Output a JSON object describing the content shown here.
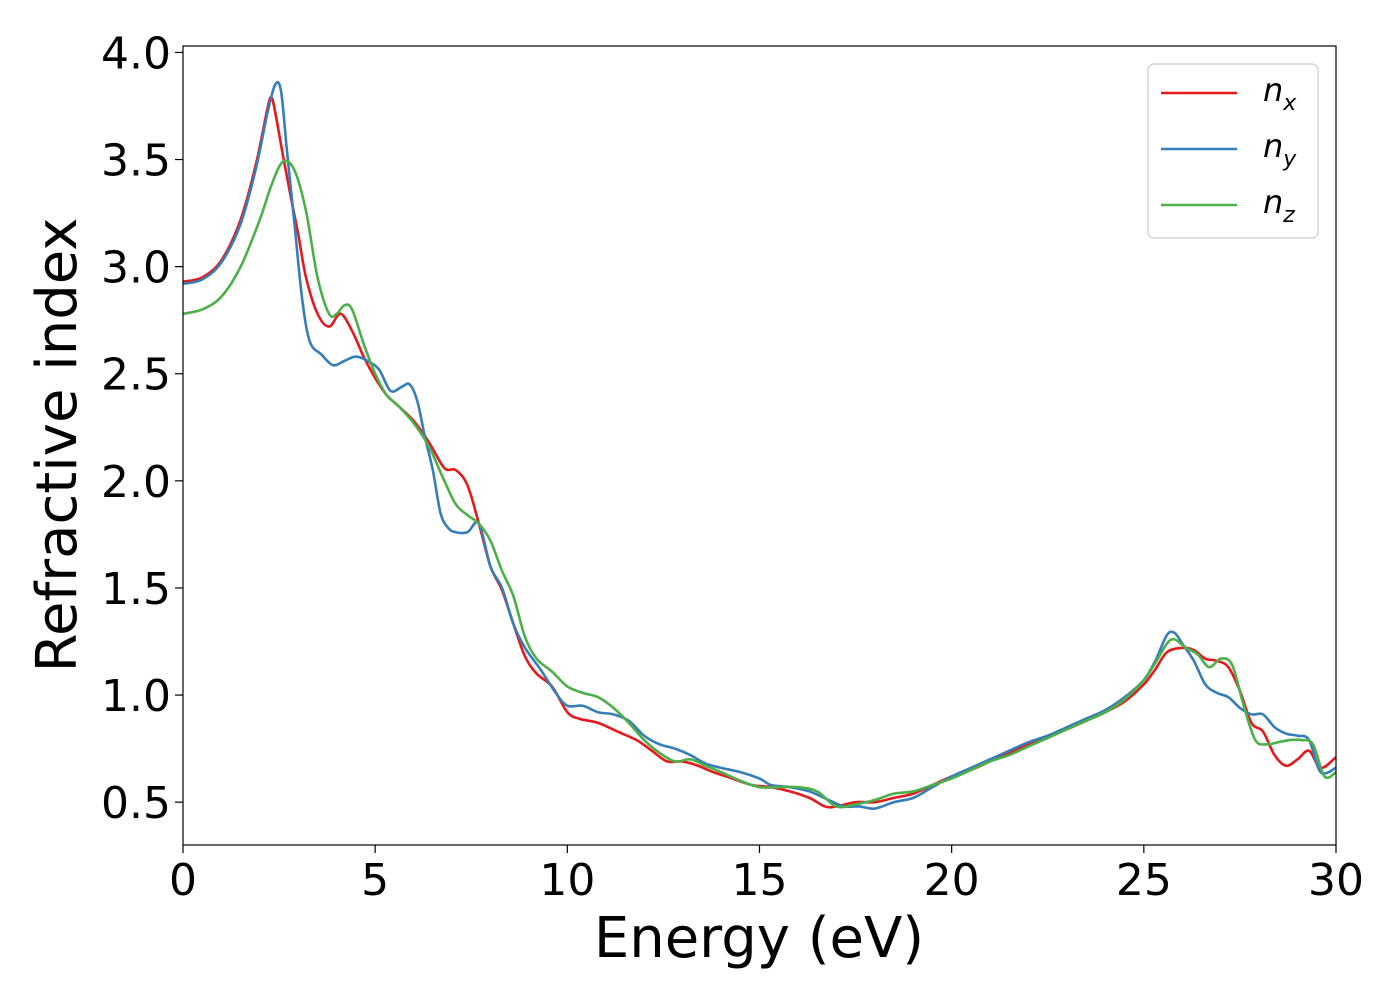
{
  "chart_data": {
    "type": "line",
    "title": "",
    "xlabel": "Energy (eV)",
    "ylabel": "Refractive index",
    "xlim": [
      0,
      30
    ],
    "ylim": [
      0.3,
      4.03
    ],
    "xticks": [
      0,
      5,
      10,
      15,
      20,
      25,
      30
    ],
    "xtick_labels": [
      "0",
      "5",
      "10",
      "15",
      "20",
      "25",
      "30"
    ],
    "yticks": [
      0.5,
      1.0,
      1.5,
      2.0,
      2.5,
      3.0,
      3.5,
      4.0
    ],
    "ytick_labels": [
      "0.5",
      "1.0",
      "1.5",
      "2.0",
      "2.5",
      "3.0",
      "3.5",
      "4.0"
    ],
    "grid": false,
    "legend_position": "top-right",
    "series": [
      {
        "name": "n_x",
        "label_base": "n",
        "label_sub": "x",
        "color": "#e41a1c",
        "points": [
          [
            0,
            2.93
          ],
          [
            0.5,
            2.95
          ],
          [
            1.0,
            3.03
          ],
          [
            1.5,
            3.22
          ],
          [
            1.9,
            3.48
          ],
          [
            2.2,
            3.74
          ],
          [
            2.3,
            3.79
          ],
          [
            2.4,
            3.72
          ],
          [
            2.6,
            3.52
          ],
          [
            2.8,
            3.33
          ],
          [
            3.0,
            3.15
          ],
          [
            3.2,
            2.95
          ],
          [
            3.5,
            2.78
          ],
          [
            3.8,
            2.72
          ],
          [
            4.1,
            2.78
          ],
          [
            4.4,
            2.7
          ],
          [
            4.7,
            2.58
          ],
          [
            5.0,
            2.48
          ],
          [
            5.3,
            2.4
          ],
          [
            5.6,
            2.35
          ],
          [
            6.0,
            2.28
          ],
          [
            6.4,
            2.18
          ],
          [
            6.8,
            2.06
          ],
          [
            7.1,
            2.05
          ],
          [
            7.4,
            1.98
          ],
          [
            7.7,
            1.8
          ],
          [
            8.0,
            1.6
          ],
          [
            8.3,
            1.49
          ],
          [
            8.6,
            1.33
          ],
          [
            8.9,
            1.18
          ],
          [
            9.2,
            1.1
          ],
          [
            9.6,
            1.04
          ],
          [
            10.0,
            0.92
          ],
          [
            10.3,
            0.89
          ],
          [
            10.8,
            0.87
          ],
          [
            11.3,
            0.83
          ],
          [
            11.8,
            0.79
          ],
          [
            12.2,
            0.74
          ],
          [
            12.6,
            0.69
          ],
          [
            13.0,
            0.69
          ],
          [
            13.4,
            0.67
          ],
          [
            13.8,
            0.64
          ],
          [
            14.3,
            0.61
          ],
          [
            14.8,
            0.58
          ],
          [
            15.3,
            0.57
          ],
          [
            15.8,
            0.55
          ],
          [
            16.3,
            0.52
          ],
          [
            16.7,
            0.48
          ],
          [
            17.0,
            0.48
          ],
          [
            17.5,
            0.5
          ],
          [
            18.0,
            0.5
          ],
          [
            18.5,
            0.52
          ],
          [
            19.0,
            0.54
          ],
          [
            19.5,
            0.58
          ],
          [
            20.0,
            0.62
          ],
          [
            20.5,
            0.65
          ],
          [
            21.0,
            0.69
          ],
          [
            21.5,
            0.73
          ],
          [
            22.0,
            0.77
          ],
          [
            22.5,
            0.81
          ],
          [
            23.0,
            0.84
          ],
          [
            23.5,
            0.88
          ],
          [
            24.0,
            0.92
          ],
          [
            24.5,
            0.97
          ],
          [
            25.0,
            1.05
          ],
          [
            25.3,
            1.12
          ],
          [
            25.6,
            1.2
          ],
          [
            26.0,
            1.22
          ],
          [
            26.3,
            1.21
          ],
          [
            26.6,
            1.17
          ],
          [
            26.9,
            1.16
          ],
          [
            27.2,
            1.13
          ],
          [
            27.5,
            1.02
          ],
          [
            27.8,
            0.87
          ],
          [
            28.1,
            0.83
          ],
          [
            28.4,
            0.72
          ],
          [
            28.7,
            0.67
          ],
          [
            29.0,
            0.7
          ],
          [
            29.3,
            0.74
          ],
          [
            29.6,
            0.66
          ],
          [
            30.0,
            0.71
          ]
        ]
      },
      {
        "name": "n_y",
        "label_base": "n",
        "label_sub": "y",
        "color": "#377eb8",
        "points": [
          [
            0,
            2.92
          ],
          [
            0.5,
            2.94
          ],
          [
            1.0,
            3.02
          ],
          [
            1.5,
            3.2
          ],
          [
            1.9,
            3.46
          ],
          [
            2.2,
            3.72
          ],
          [
            2.4,
            3.85
          ],
          [
            2.55,
            3.82
          ],
          [
            2.7,
            3.55
          ],
          [
            2.9,
            3.2
          ],
          [
            3.1,
            2.85
          ],
          [
            3.3,
            2.65
          ],
          [
            3.6,
            2.59
          ],
          [
            3.9,
            2.54
          ],
          [
            4.2,
            2.56
          ],
          [
            4.5,
            2.58
          ],
          [
            4.8,
            2.56
          ],
          [
            5.1,
            2.52
          ],
          [
            5.4,
            2.42
          ],
          [
            5.7,
            2.44
          ],
          [
            5.9,
            2.45
          ],
          [
            6.1,
            2.37
          ],
          [
            6.3,
            2.2
          ],
          [
            6.5,
            2.05
          ],
          [
            6.7,
            1.85
          ],
          [
            6.9,
            1.78
          ],
          [
            7.1,
            1.76
          ],
          [
            7.4,
            1.76
          ],
          [
            7.7,
            1.8
          ],
          [
            8.0,
            1.6
          ],
          [
            8.3,
            1.5
          ],
          [
            8.6,
            1.33
          ],
          [
            8.9,
            1.22
          ],
          [
            9.3,
            1.12
          ],
          [
            9.7,
            1.01
          ],
          [
            10.0,
            0.95
          ],
          [
            10.4,
            0.95
          ],
          [
            10.8,
            0.92
          ],
          [
            11.2,
            0.91
          ],
          [
            11.6,
            0.88
          ],
          [
            12.0,
            0.81
          ],
          [
            12.4,
            0.77
          ],
          [
            12.8,
            0.75
          ],
          [
            13.2,
            0.72
          ],
          [
            13.6,
            0.68
          ],
          [
            14.0,
            0.66
          ],
          [
            14.5,
            0.64
          ],
          [
            15.0,
            0.61
          ],
          [
            15.3,
            0.58
          ],
          [
            15.8,
            0.57
          ],
          [
            16.3,
            0.55
          ],
          [
            16.8,
            0.51
          ],
          [
            17.2,
            0.48
          ],
          [
            17.6,
            0.48
          ],
          [
            18.0,
            0.47
          ],
          [
            18.5,
            0.5
          ],
          [
            19.0,
            0.52
          ],
          [
            19.5,
            0.57
          ],
          [
            20.0,
            0.62
          ],
          [
            20.5,
            0.66
          ],
          [
            21.0,
            0.7
          ],
          [
            21.5,
            0.74
          ],
          [
            22.0,
            0.78
          ],
          [
            22.5,
            0.81
          ],
          [
            23.0,
            0.85
          ],
          [
            23.5,
            0.89
          ],
          [
            24.0,
            0.93
          ],
          [
            24.5,
            0.99
          ],
          [
            25.0,
            1.07
          ],
          [
            25.3,
            1.16
          ],
          [
            25.6,
            1.28
          ],
          [
            25.8,
            1.29
          ],
          [
            26.0,
            1.24
          ],
          [
            26.3,
            1.16
          ],
          [
            26.6,
            1.05
          ],
          [
            26.9,
            1.01
          ],
          [
            27.2,
            0.99
          ],
          [
            27.5,
            0.94
          ],
          [
            27.8,
            0.91
          ],
          [
            28.1,
            0.91
          ],
          [
            28.4,
            0.85
          ],
          [
            28.7,
            0.82
          ],
          [
            29.0,
            0.81
          ],
          [
            29.3,
            0.79
          ],
          [
            29.6,
            0.64
          ],
          [
            30.0,
            0.66
          ]
        ]
      },
      {
        "name": "n_z",
        "label_base": "n",
        "label_sub": "z",
        "color": "#4daf4a",
        "points": [
          [
            0,
            2.78
          ],
          [
            0.5,
            2.8
          ],
          [
            1.0,
            2.86
          ],
          [
            1.5,
            3.0
          ],
          [
            2.0,
            3.22
          ],
          [
            2.3,
            3.38
          ],
          [
            2.6,
            3.49
          ],
          [
            2.9,
            3.45
          ],
          [
            3.2,
            3.26
          ],
          [
            3.5,
            2.95
          ],
          [
            3.8,
            2.78
          ],
          [
            4.0,
            2.78
          ],
          [
            4.2,
            2.82
          ],
          [
            4.4,
            2.8
          ],
          [
            4.7,
            2.64
          ],
          [
            5.0,
            2.5
          ],
          [
            5.3,
            2.4
          ],
          [
            5.6,
            2.35
          ],
          [
            6.0,
            2.27
          ],
          [
            6.4,
            2.16
          ],
          [
            6.8,
            2.0
          ],
          [
            7.1,
            1.89
          ],
          [
            7.4,
            1.84
          ],
          [
            7.7,
            1.8
          ],
          [
            8.0,
            1.72
          ],
          [
            8.3,
            1.58
          ],
          [
            8.6,
            1.46
          ],
          [
            8.9,
            1.27
          ],
          [
            9.2,
            1.17
          ],
          [
            9.6,
            1.11
          ],
          [
            10.0,
            1.04
          ],
          [
            10.4,
            1.01
          ],
          [
            10.8,
            0.99
          ],
          [
            11.2,
            0.94
          ],
          [
            11.6,
            0.87
          ],
          [
            12.0,
            0.79
          ],
          [
            12.4,
            0.73
          ],
          [
            12.8,
            0.69
          ],
          [
            13.2,
            0.7
          ],
          [
            13.6,
            0.67
          ],
          [
            14.0,
            0.64
          ],
          [
            14.5,
            0.6
          ],
          [
            15.0,
            0.57
          ],
          [
            15.5,
            0.57
          ],
          [
            16.0,
            0.57
          ],
          [
            16.5,
            0.55
          ],
          [
            17.0,
            0.48
          ],
          [
            17.5,
            0.49
          ],
          [
            18.0,
            0.51
          ],
          [
            18.5,
            0.54
          ],
          [
            19.0,
            0.55
          ],
          [
            19.5,
            0.58
          ],
          [
            20.0,
            0.61
          ],
          [
            20.5,
            0.65
          ],
          [
            21.0,
            0.69
          ],
          [
            21.5,
            0.72
          ],
          [
            22.0,
            0.76
          ],
          [
            22.5,
            0.8
          ],
          [
            23.0,
            0.84
          ],
          [
            23.5,
            0.88
          ],
          [
            24.0,
            0.92
          ],
          [
            24.5,
            0.98
          ],
          [
            25.0,
            1.07
          ],
          [
            25.3,
            1.15
          ],
          [
            25.6,
            1.24
          ],
          [
            25.8,
            1.26
          ],
          [
            26.1,
            1.22
          ],
          [
            26.4,
            1.19
          ],
          [
            26.7,
            1.13
          ],
          [
            27.0,
            1.17
          ],
          [
            27.3,
            1.14
          ],
          [
            27.6,
            0.95
          ],
          [
            27.9,
            0.79
          ],
          [
            28.2,
            0.77
          ],
          [
            28.5,
            0.78
          ],
          [
            28.8,
            0.79
          ],
          [
            29.1,
            0.79
          ],
          [
            29.4,
            0.77
          ],
          [
            29.7,
            0.62
          ],
          [
            30.0,
            0.64
          ]
        ]
      }
    ]
  }
}
